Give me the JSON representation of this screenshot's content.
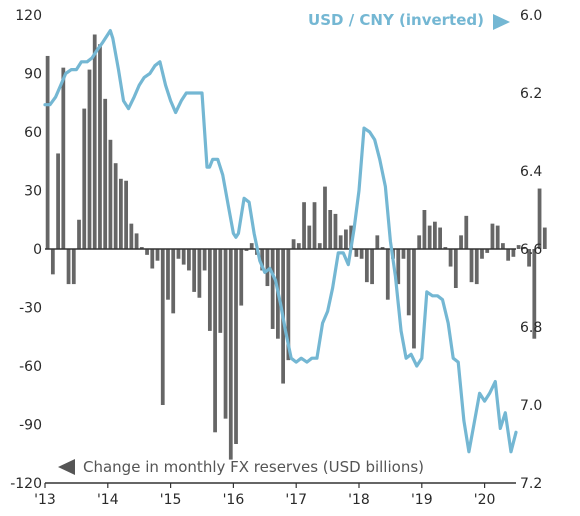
{
  "chart_data": {
    "type": "bar+line",
    "title": "",
    "colors": {
      "bars": "#666666",
      "line": "#74b7d3",
      "axis": "#333333"
    },
    "left_axis": {
      "label": "Change in monthly FX reserves (USD billions)",
      "ylim": [
        -120,
        120
      ],
      "ticks": [
        -120,
        -90,
        -60,
        -30,
        0,
        30,
        60,
        90,
        120
      ],
      "tick_labels": [
        "-120",
        "-90",
        "-60",
        "-30",
        "0",
        "30",
        "60",
        "90",
        "120"
      ]
    },
    "right_axis": {
      "label": "USD / CNY (inverted)",
      "inverted": true,
      "ylim": [
        6.0,
        7.2
      ],
      "ticks": [
        6.0,
        6.2,
        6.4,
        6.6,
        6.8,
        7.0,
        7.2
      ],
      "tick_labels": [
        "6.0",
        "6.2",
        "6.4",
        "6.6",
        "6.8",
        "7.0",
        "7.2"
      ]
    },
    "x_axis": {
      "range": [
        2013.0,
        2020.5
      ],
      "ticks": [
        2013,
        2014,
        2015,
        2016,
        2017,
        2018,
        2019,
        2020
      ],
      "tick_labels": [
        "'13",
        "'14",
        "'15",
        "'16",
        "'17",
        "'18",
        "'19",
        "'20"
      ]
    },
    "series": [
      {
        "name": "Change in monthly FX reserves (USD billions)",
        "axis": "left",
        "kind": "bar",
        "start": 2013.0,
        "step_months": 1,
        "values": [
          99,
          -13,
          49,
          93,
          -18,
          -18,
          15,
          72,
          92,
          110,
          105,
          77,
          56,
          44,
          36,
          35,
          13,
          8,
          1,
          -3,
          -10,
          -6,
          -80,
          -26,
          -33,
          -5,
          -8,
          -11,
          -22,
          -25,
          -11,
          -42,
          -94,
          -43,
          -87,
          -108,
          -100,
          -29,
          -1,
          3,
          -3,
          -11,
          -19,
          -41,
          -46,
          -69,
          -57,
          5,
          3,
          24,
          12,
          24,
          3,
          32,
          20,
          18,
          7,
          10,
          12,
          -4,
          -5,
          -17,
          -18,
          7,
          1,
          -26,
          -5,
          -18,
          -5,
          -34,
          -51,
          7,
          20,
          12,
          14,
          11,
          1,
          -9,
          -20,
          7,
          17,
          -17,
          -18,
          -5,
          -2,
          13,
          12,
          3,
          -6,
          -4,
          2,
          1,
          -9,
          -46,
          31,
          11
        ]
      },
      {
        "name": "USD / CNY (inverted)",
        "axis": "right",
        "kind": "line",
        "x": [
          2013.0,
          2013.08,
          2013.17,
          2013.25,
          2013.33,
          2013.42,
          2013.5,
          2013.58,
          2013.67,
          2013.75,
          2013.83,
          2013.92,
          2014.0,
          2014.04,
          2014.08,
          2014.17,
          2014.25,
          2014.33,
          2014.42,
          2014.5,
          2014.58,
          2014.67,
          2014.75,
          2014.83,
          2014.92,
          2015.0,
          2015.08,
          2015.17,
          2015.25,
          2015.33,
          2015.42,
          2015.5,
          2015.58,
          2015.62,
          2015.67,
          2015.75,
          2015.83,
          2015.92,
          2016.0,
          2016.04,
          2016.08,
          2016.17,
          2016.25,
          2016.33,
          2016.42,
          2016.5,
          2016.58,
          2016.67,
          2016.75,
          2016.83,
          2016.92,
          2017.0,
          2017.08,
          2017.17,
          2017.25,
          2017.33,
          2017.42,
          2017.5,
          2017.58,
          2017.67,
          2017.75,
          2017.83,
          2017.92,
          2018.0,
          2018.08,
          2018.17,
          2018.25,
          2018.33,
          2018.42,
          2018.5,
          2018.58,
          2018.67,
          2018.75,
          2018.83,
          2018.92,
          2019.0,
          2019.08,
          2019.17,
          2019.25,
          2019.33,
          2019.42,
          2019.5,
          2019.58,
          2019.67,
          2019.75,
          2019.83,
          2019.92,
          2020.0,
          2020.08,
          2020.17,
          2020.25,
          2020.33,
          2020.42,
          2020.5
        ],
        "values": [
          6.23,
          6.23,
          6.21,
          6.18,
          6.15,
          6.14,
          6.14,
          6.12,
          6.12,
          6.11,
          6.09,
          6.07,
          6.05,
          6.04,
          6.06,
          6.14,
          6.22,
          6.24,
          6.21,
          6.18,
          6.16,
          6.15,
          6.13,
          6.12,
          6.18,
          6.22,
          6.25,
          6.22,
          6.2,
          6.2,
          6.2,
          6.2,
          6.39,
          6.39,
          6.37,
          6.37,
          6.41,
          6.49,
          6.56,
          6.57,
          6.56,
          6.47,
          6.48,
          6.56,
          6.63,
          6.66,
          6.65,
          6.68,
          6.74,
          6.81,
          6.88,
          6.89,
          6.88,
          6.89,
          6.88,
          6.88,
          6.79,
          6.76,
          6.7,
          6.61,
          6.61,
          6.64,
          6.55,
          6.45,
          6.29,
          6.3,
          6.32,
          6.37,
          6.44,
          6.58,
          6.67,
          6.81,
          6.88,
          6.87,
          6.9,
          6.88,
          6.71,
          6.72,
          6.72,
          6.73,
          6.79,
          6.88,
          6.89,
          7.04,
          7.12,
          7.05,
          6.97,
          6.99,
          6.97,
          6.94,
          7.06,
          7.02,
          7.12,
          7.07
        ]
      }
    ]
  }
}
